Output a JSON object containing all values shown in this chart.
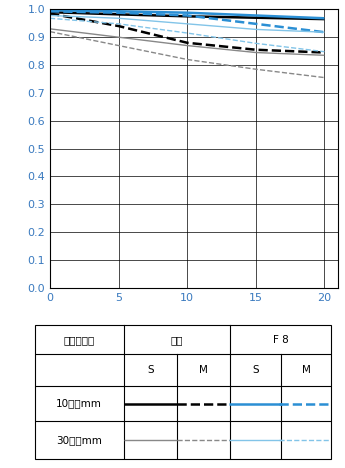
{
  "xlim": [
    0,
    21
  ],
  "ylim": [
    0.0,
    1.0
  ],
  "xticks": [
    0,
    5,
    10,
    15,
    20
  ],
  "yticks": [
    0.0,
    0.1,
    0.2,
    0.3,
    0.4,
    0.5,
    0.6,
    0.7,
    0.8,
    0.9,
    1.0
  ],
  "tick_color": "#3a7abf",
  "lines": [
    {
      "x": [
        0,
        5,
        10,
        15,
        20
      ],
      "y": [
        0.99,
        0.982,
        0.975,
        0.97,
        0.965
      ],
      "color": "#000000",
      "lw": 1.8,
      "ls": "solid"
    },
    {
      "x": [
        0,
        5,
        10,
        15,
        20
      ],
      "y": [
        0.985,
        0.94,
        0.88,
        0.855,
        0.845
      ],
      "color": "#000000",
      "lw": 1.8,
      "ls": "dashed"
    },
    {
      "x": [
        0,
        5,
        10,
        15,
        20
      ],
      "y": [
        0.93,
        0.9,
        0.87,
        0.845,
        0.835
      ],
      "color": "#888888",
      "lw": 1.0,
      "ls": "solid"
    },
    {
      "x": [
        0,
        5,
        10,
        15,
        20
      ],
      "y": [
        0.92,
        0.87,
        0.82,
        0.785,
        0.755
      ],
      "color": "#888888",
      "lw": 1.0,
      "ls": "dashed"
    },
    {
      "x": [
        0,
        5,
        10,
        15,
        20
      ],
      "y": [
        0.997,
        0.993,
        0.988,
        0.978,
        0.968
      ],
      "color": "#2b8fd4",
      "lw": 1.8,
      "ls": "solid"
    },
    {
      "x": [
        0,
        5,
        10,
        15,
        20
      ],
      "y": [
        0.993,
        0.988,
        0.978,
        0.948,
        0.918
      ],
      "color": "#2b8fd4",
      "lw": 1.8,
      "ls": "dashed"
    },
    {
      "x": [
        0,
        5,
        10,
        15,
        20
      ],
      "y": [
        0.978,
        0.968,
        0.948,
        0.928,
        0.918
      ],
      "color": "#82c4e8",
      "lw": 1.0,
      "ls": "solid"
    },
    {
      "x": [
        0,
        5,
        10,
        15,
        20
      ],
      "y": [
        0.968,
        0.948,
        0.915,
        0.878,
        0.848
      ],
      "color": "#82c4e8",
      "lw": 1.0,
      "ls": "dashed"
    }
  ],
  "table": {
    "col_splits": [
      0.3,
      0.48,
      0.66,
      0.83
    ],
    "row_splits": [
      0.72,
      0.5,
      0.26
    ],
    "header1_open": "開放",
    "header1_f8": "F 8",
    "header2": [
      "S",
      "M",
      "S",
      "M"
    ],
    "row_labels": [
      "10本／mm",
      "30本／mm"
    ],
    "corner_label": "空間周波数",
    "line_samples": [
      {
        "color": "#000000",
        "lw": 1.8,
        "ls": "solid"
      },
      {
        "color": "#000000",
        "lw": 1.8,
        "ls": "dashed"
      },
      {
        "color": "#2b8fd4",
        "lw": 1.8,
        "ls": "solid"
      },
      {
        "color": "#2b8fd4",
        "lw": 1.8,
        "ls": "dashed"
      },
      {
        "color": "#888888",
        "lw": 1.0,
        "ls": "solid"
      },
      {
        "color": "#888888",
        "lw": 1.0,
        "ls": "dashed"
      },
      {
        "color": "#82c4e8",
        "lw": 1.0,
        "ls": "solid"
      },
      {
        "color": "#82c4e8",
        "lw": 1.0,
        "ls": "dashed"
      }
    ]
  }
}
